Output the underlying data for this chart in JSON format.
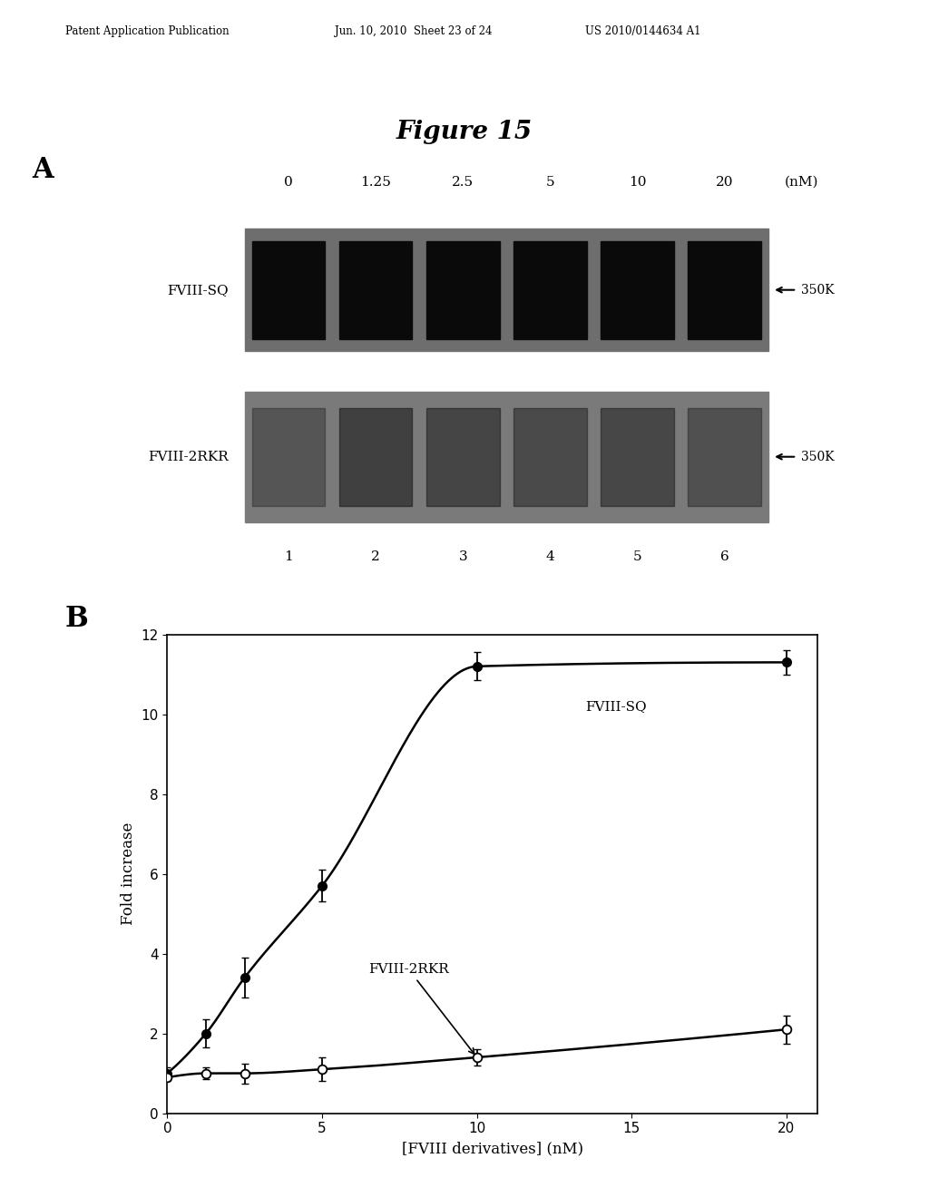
{
  "header_left": "Patent Application Publication",
  "header_mid": "Jun. 10, 2010  Sheet 23 of 24",
  "header_right": "US 2010/0144634 A1",
  "figure_title": "Figure 15",
  "panel_a_label": "A",
  "panel_b_label": "B",
  "gel_concentrations": [
    "0",
    "1.25",
    "2.5",
    "5",
    "10",
    "20"
  ],
  "gel_unit": "(nM)",
  "gel_lane_numbers": [
    "1",
    "2",
    "3",
    "4",
    "5",
    "6"
  ],
  "gel_row1_label": "FVIII-SQ",
  "gel_row2_label": "FVIII-2RKR",
  "gel_marker_label": "350K",
  "plot_xlabel": "[FVIII derivatives] (nM)",
  "plot_ylabel": "Fold increase",
  "plot_xlim": [
    0,
    21
  ],
  "plot_ylim": [
    0,
    12
  ],
  "plot_xticks": [
    0,
    5,
    10,
    15,
    20
  ],
  "plot_yticks": [
    0,
    2,
    4,
    6,
    8,
    10,
    12
  ],
  "fviii_sq_x": [
    0,
    1.25,
    2.5,
    5,
    10,
    20
  ],
  "fviii_sq_y": [
    1.0,
    2.0,
    3.4,
    5.7,
    11.2,
    11.3
  ],
  "fviii_sq_yerr": [
    0.15,
    0.35,
    0.5,
    0.4,
    0.35,
    0.3
  ],
  "fviii_2rkr_x": [
    0,
    1.25,
    2.5,
    5,
    10,
    20
  ],
  "fviii_2rkr_y": [
    0.9,
    1.0,
    1.0,
    1.1,
    1.4,
    2.1
  ],
  "fviii_2rkr_yerr": [
    0.1,
    0.15,
    0.25,
    0.3,
    0.2,
    0.35
  ],
  "label_fviii_sq": "FVIII-SQ",
  "label_fviii_2rkr": "FVIII-2RKR",
  "bg_color": "#ffffff",
  "line_color": "#000000"
}
